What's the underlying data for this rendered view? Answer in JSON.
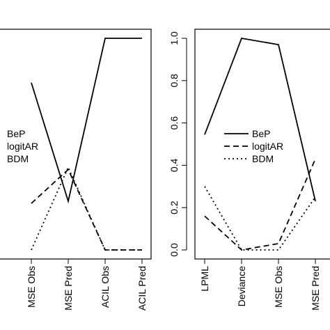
{
  "chart_data": [
    {
      "type": "line",
      "categories": [
        "MSE Obs",
        "MSE Pred",
        "ACIL Obs",
        "ACIL Pred"
      ],
      "series": [
        {
          "name": "BeP",
          "color": "#000000",
          "dash": "solid",
          "values": [
            0.79,
            0.23,
            1.0,
            1.0
          ]
        },
        {
          "name": "logitAR",
          "color": "#000000",
          "dash": "dashed",
          "values": [
            0.22,
            0.38,
            0.0,
            0.0
          ]
        },
        {
          "name": "BDM",
          "color": "#000000",
          "dash": "dotted",
          "values": [
            0.0,
            0.39,
            0.0,
            0.0
          ]
        }
      ],
      "ylim": [
        0,
        1
      ],
      "legend": "left"
    },
    {
      "type": "line",
      "categories": [
        "LPML",
        "Deviance",
        "MSE Obs",
        "MSE Pred"
      ],
      "series": [
        {
          "name": "BeP",
          "color": "#000000",
          "dash": "solid",
          "values": [
            0.545,
            1.0,
            0.97,
            0.23
          ]
        },
        {
          "name": "logitAR",
          "color": "#000000",
          "dash": "dashed",
          "values": [
            0.16,
            0.0,
            0.03,
            0.43
          ]
        },
        {
          "name": "BDM",
          "color": "#000000",
          "dash": "dotted",
          "values": [
            0.3,
            0.0,
            0.0,
            0.25
          ]
        }
      ],
      "ylim": [
        0,
        1
      ],
      "yticks": [
        {
          "value": 0,
          "label": "0.0"
        },
        {
          "value": 0.2,
          "label": "0.2"
        },
        {
          "value": 0.4,
          "label": "0.4"
        },
        {
          "value": 0.6,
          "label": "0.6"
        },
        {
          "value": 0.8,
          "label": "0.8"
        },
        {
          "value": 1,
          "label": "1.0"
        }
      ],
      "legend": "center"
    }
  ]
}
